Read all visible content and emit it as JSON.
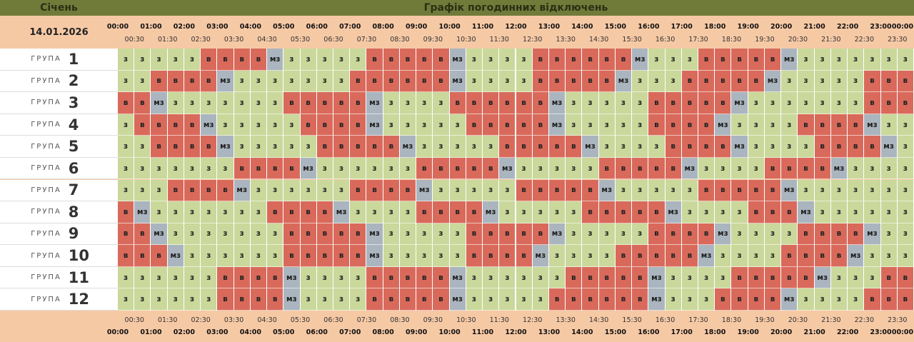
{
  "header": {
    "month": "Січень",
    "title": "Графік погодинних відключень",
    "date": "14.01.2026"
  },
  "hours": [
    "00:00",
    "01:00",
    "02:00",
    "03:00",
    "04:00",
    "05:00",
    "06:00",
    "07:00",
    "08:00",
    "09:00",
    "10:00",
    "11:00",
    "12:00",
    "13:00",
    "14:00",
    "15:00",
    "16:00",
    "17:00",
    "18:00",
    "19:00",
    "20:00",
    "21:00",
    "22:00",
    "23:00",
    "00:00"
  ],
  "half_hours": [
    "00:30",
    "01:30",
    "02:30",
    "03:30",
    "04:30",
    "05:30",
    "06:30",
    "07:30",
    "08:30",
    "09:30",
    "10:30",
    "11:30",
    "12:30",
    "13:30",
    "14:30",
    "15:30",
    "16:30",
    "17:30",
    "18:30",
    "19:30",
    "20:30",
    "21:30",
    "22:30",
    "23:30"
  ],
  "cell_colors": {
    "з": "#cad89b",
    "в": "#d96a5b",
    "мз": "#aab5bf"
  },
  "rows": [
    {
      "label": "ГРУПА",
      "number": "1",
      "cells": [
        "з",
        "з",
        "з",
        "з",
        "з",
        "в",
        "в",
        "в",
        "в",
        "мз",
        "з",
        "з",
        "з",
        "з",
        "з",
        "в",
        "в",
        "в",
        "в",
        "в",
        "мз",
        "з",
        "з",
        "з",
        "з",
        "в",
        "в",
        "в",
        "в",
        "в",
        "в",
        "мз",
        "з",
        "з",
        "з",
        "в",
        "в",
        "в",
        "в",
        "в",
        "мз",
        "з",
        "з",
        "з",
        "з",
        "з",
        "з",
        "з"
      ]
    },
    {
      "label": "ГРУПА",
      "number": "2",
      "cells": [
        "з",
        "з",
        "в",
        "в",
        "в",
        "в",
        "мз",
        "з",
        "з",
        "з",
        "з",
        "з",
        "з",
        "з",
        "в",
        "в",
        "в",
        "в",
        "в",
        "в",
        "мз",
        "з",
        "з",
        "з",
        "з",
        "в",
        "в",
        "в",
        "в",
        "в",
        "мз",
        "з",
        "з",
        "з",
        "в",
        "в",
        "в",
        "в",
        "в",
        "мз",
        "з",
        "з",
        "з",
        "з",
        "з",
        "в",
        "в",
        "в"
      ]
    },
    {
      "label": "ГРУПА",
      "number": "3",
      "cells": [
        "в",
        "в",
        "мз",
        "з",
        "з",
        "з",
        "з",
        "з",
        "з",
        "з",
        "в",
        "в",
        "в",
        "в",
        "в",
        "мз",
        "з",
        "з",
        "з",
        "з",
        "в",
        "в",
        "в",
        "в",
        "в",
        "в",
        "мз",
        "з",
        "з",
        "з",
        "з",
        "з",
        "в",
        "в",
        "в",
        "в",
        "в",
        "мз",
        "з",
        "з",
        "з",
        "з",
        "з",
        "з",
        "з",
        "в",
        "в",
        "в"
      ]
    },
    {
      "label": "ГРУПА",
      "number": "4",
      "cells": [
        "з",
        "в",
        "в",
        "в",
        "в",
        "мз",
        "з",
        "з",
        "з",
        "з",
        "з",
        "в",
        "в",
        "в",
        "в",
        "мз",
        "з",
        "з",
        "з",
        "з",
        "з",
        "в",
        "в",
        "в",
        "в",
        "в",
        "мз",
        "з",
        "з",
        "з",
        "з",
        "з",
        "в",
        "в",
        "в",
        "в",
        "мз",
        "з",
        "з",
        "з",
        "з",
        "в",
        "в",
        "в",
        "в",
        "мз",
        "з",
        "з"
      ]
    },
    {
      "label": "ГРУПА",
      "number": "5",
      "cells": [
        "з",
        "з",
        "в",
        "в",
        "в",
        "в",
        "мз",
        "з",
        "з",
        "з",
        "з",
        "з",
        "в",
        "в",
        "в",
        "в",
        "в",
        "мз",
        "з",
        "з",
        "з",
        "з",
        "з",
        "в",
        "в",
        "в",
        "в",
        "в",
        "мз",
        "з",
        "з",
        "з",
        "з",
        "в",
        "в",
        "в",
        "в",
        "мз",
        "з",
        "з",
        "з",
        "з",
        "в",
        "в",
        "в",
        "в",
        "мз",
        "з"
      ]
    },
    {
      "label": "ГРУПА",
      "number": "6",
      "cells": [
        "з",
        "з",
        "з",
        "з",
        "з",
        "з",
        "з",
        "в",
        "в",
        "в",
        "в",
        "мз",
        "з",
        "з",
        "з",
        "з",
        "з",
        "з",
        "в",
        "в",
        "в",
        "в",
        "в",
        "мз",
        "з",
        "з",
        "з",
        "з",
        "з",
        "в",
        "в",
        "в",
        "в",
        "в",
        "мз",
        "з",
        "з",
        "з",
        "з",
        "в",
        "в",
        "в",
        "в",
        "мз",
        "з",
        "з",
        "з",
        "з"
      ]
    },
    {
      "label": "ГРУПА",
      "number": "7",
      "cells": [
        "з",
        "з",
        "з",
        "в",
        "в",
        "в",
        "в",
        "мз",
        "з",
        "з",
        "з",
        "з",
        "з",
        "з",
        "в",
        "в",
        "в",
        "в",
        "мз",
        "з",
        "з",
        "з",
        "з",
        "з",
        "в",
        "в",
        "в",
        "в",
        "в",
        "мз",
        "з",
        "з",
        "з",
        "з",
        "з",
        "в",
        "в",
        "в",
        "в",
        "в",
        "мз",
        "з",
        "з",
        "з",
        "з",
        "з",
        "з",
        "з"
      ]
    },
    {
      "label": "ГРУПА",
      "number": "8",
      "cells": [
        "в",
        "мз",
        "з",
        "з",
        "з",
        "з",
        "з",
        "з",
        "з",
        "в",
        "в",
        "в",
        "в",
        "мз",
        "з",
        "з",
        "з",
        "з",
        "в",
        "в",
        "в",
        "в",
        "мз",
        "з",
        "з",
        "з",
        "з",
        "з",
        "в",
        "в",
        "в",
        "в",
        "в",
        "мз",
        "з",
        "з",
        "з",
        "з",
        "в",
        "в",
        "в",
        "мз",
        "з",
        "з",
        "з",
        "з",
        "з",
        "з"
      ]
    },
    {
      "label": "ГРУПА",
      "number": "9",
      "cells": [
        "в",
        "в",
        "мз",
        "з",
        "з",
        "з",
        "з",
        "з",
        "з",
        "з",
        "в",
        "в",
        "в",
        "в",
        "в",
        "мз",
        "з",
        "з",
        "з",
        "з",
        "з",
        "в",
        "в",
        "в",
        "в",
        "в",
        "мз",
        "з",
        "з",
        "з",
        "з",
        "з",
        "в",
        "в",
        "в",
        "в",
        "мз",
        "з",
        "з",
        "з",
        "з",
        "в",
        "в",
        "в",
        "в",
        "мз",
        "з",
        "з"
      ]
    },
    {
      "label": "ГРУПА",
      "number": "10",
      "cells": [
        "в",
        "в",
        "в",
        "мз",
        "з",
        "з",
        "з",
        "з",
        "з",
        "з",
        "в",
        "в",
        "в",
        "в",
        "в",
        "мз",
        "з",
        "з",
        "з",
        "з",
        "з",
        "в",
        "в",
        "в",
        "в",
        "мз",
        "з",
        "з",
        "з",
        "з",
        "в",
        "в",
        "в",
        "в",
        "в",
        "мз",
        "з",
        "з",
        "з",
        "з",
        "в",
        "в",
        "в",
        "в",
        "мз",
        "з",
        "з",
        "з"
      ]
    },
    {
      "label": "ГРУПА",
      "number": "11",
      "cells": [
        "з",
        "з",
        "з",
        "з",
        "з",
        "з",
        "в",
        "в",
        "в",
        "в",
        "мз",
        "з",
        "з",
        "з",
        "з",
        "в",
        "в",
        "в",
        "в",
        "в",
        "мз",
        "з",
        "з",
        "з",
        "з",
        "з",
        "з",
        "в",
        "в",
        "в",
        "в",
        "в",
        "мз",
        "з",
        "з",
        "з",
        "з",
        "в",
        "в",
        "в",
        "в",
        "в",
        "мз",
        "з",
        "з",
        "з",
        "в",
        "в"
      ]
    },
    {
      "label": "ГРУПА",
      "number": "12",
      "cells": [
        "з",
        "з",
        "з",
        "з",
        "з",
        "з",
        "в",
        "в",
        "в",
        "в",
        "мз",
        "з",
        "з",
        "з",
        "з",
        "в",
        "в",
        "в",
        "в",
        "в",
        "мз",
        "з",
        "з",
        "з",
        "з",
        "з",
        "в",
        "в",
        "в",
        "в",
        "в",
        "в",
        "мз",
        "з",
        "з",
        "з",
        "в",
        "в",
        "в",
        "в",
        "мз",
        "з",
        "з",
        "з",
        "з",
        "в",
        "в",
        "в"
      ]
    }
  ]
}
